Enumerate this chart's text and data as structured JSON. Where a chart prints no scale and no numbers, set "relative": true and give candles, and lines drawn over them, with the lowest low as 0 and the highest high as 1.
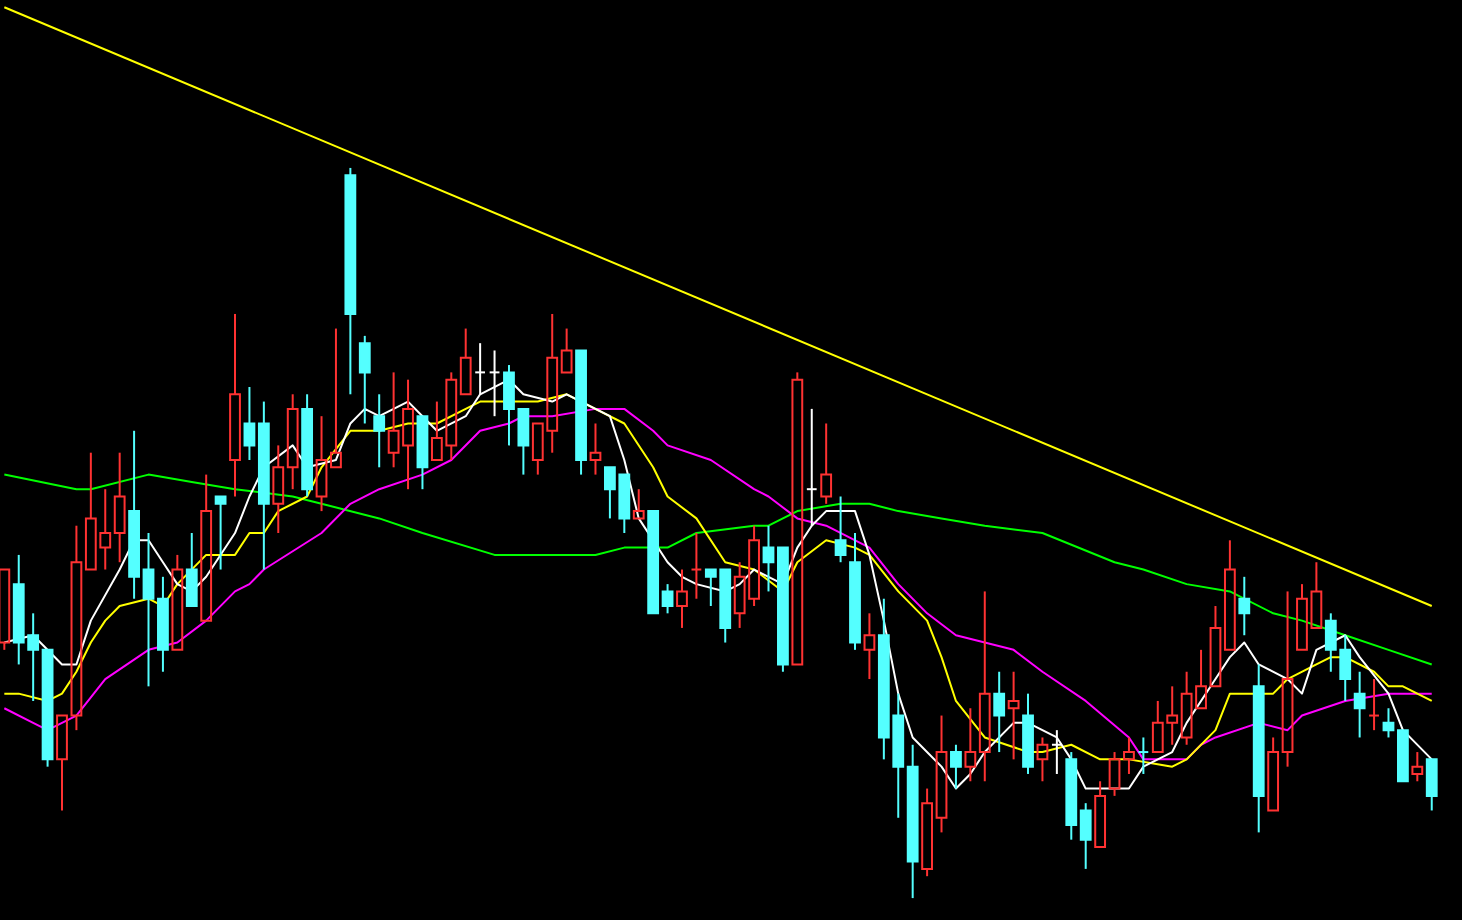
{
  "chart_data": {
    "type": "candlestick",
    "relative": true,
    "marker": "none",
    "categories": [
      null,
      null,
      null,
      null,
      null,
      null,
      null,
      null,
      null,
      null,
      null,
      null,
      null,
      null,
      null,
      null,
      null,
      null,
      null,
      null,
      null,
      null,
      null,
      null,
      null,
      null,
      null,
      null,
      null,
      null,
      null,
      null,
      null,
      null,
      null,
      null,
      null,
      null,
      null,
      null,
      null,
      null,
      null,
      null,
      null,
      null,
      null,
      null,
      null,
      null,
      null,
      null,
      null,
      null,
      null,
      null,
      null,
      null,
      null,
      null,
      null,
      null,
      null,
      null,
      null,
      null,
      null,
      null,
      null,
      null,
      null,
      null,
      null,
      null,
      null,
      null,
      null,
      null,
      null,
      null,
      null,
      null,
      null,
      null,
      null,
      null,
      null,
      null,
      null,
      null,
      null,
      null,
      null,
      null,
      null,
      null,
      null,
      null,
      null,
      null
    ],
    "ohlc": [
      [
        0.35,
        0.45,
        0.34,
        0.45
      ],
      [
        0.43,
        0.47,
        0.32,
        0.35
      ],
      [
        0.36,
        0.39,
        0.27,
        0.34
      ],
      [
        0.34,
        0.34,
        0.18,
        0.19
      ],
      [
        0.19,
        0.25,
        0.12,
        0.25
      ],
      [
        0.25,
        0.51,
        0.23,
        0.46
      ],
      [
        0.45,
        0.61,
        0.45,
        0.52
      ],
      [
        0.48,
        0.56,
        0.45,
        0.5
      ],
      [
        0.5,
        0.61,
        0.46,
        0.55
      ],
      [
        0.53,
        0.64,
        0.41,
        0.44
      ],
      [
        0.45,
        0.5,
        0.29,
        0.41
      ],
      [
        0.41,
        0.44,
        0.31,
        0.34
      ],
      [
        0.34,
        0.47,
        0.34,
        0.45
      ],
      [
        0.45,
        0.5,
        0.4,
        0.4
      ],
      [
        0.38,
        0.58,
        0.38,
        0.53
      ],
      [
        0.55,
        0.55,
        0.45,
        0.54
      ],
      [
        0.6,
        0.8,
        0.55,
        0.69
      ],
      [
        0.65,
        0.7,
        0.6,
        0.62
      ],
      [
        0.65,
        0.68,
        0.45,
        0.54
      ],
      [
        0.54,
        0.62,
        0.5,
        0.59
      ],
      [
        0.59,
        0.69,
        0.56,
        0.67
      ],
      [
        0.67,
        0.69,
        0.55,
        0.56
      ],
      [
        0.55,
        0.66,
        0.53,
        0.6
      ],
      [
        0.59,
        0.78,
        0.59,
        0.61
      ],
      [
        0.99,
        1.0,
        0.69,
        0.8
      ],
      [
        0.76,
        0.77,
        0.65,
        0.72
      ],
      [
        0.66,
        0.69,
        0.59,
        0.64
      ],
      [
        0.61,
        0.72,
        0.59,
        0.64
      ],
      [
        0.62,
        0.71,
        0.56,
        0.67
      ],
      [
        0.66,
        0.66,
        0.56,
        0.59
      ],
      [
        0.6,
        0.68,
        0.6,
        0.63
      ],
      [
        0.62,
        0.72,
        0.6,
        0.71
      ],
      [
        0.69,
        0.78,
        0.69,
        0.74
      ],
      [
        0.72,
        0.76,
        0.69,
        0.72
      ],
      [
        0.72,
        0.75,
        0.66,
        0.72
      ],
      [
        0.72,
        0.73,
        0.62,
        0.67
      ],
      [
        0.67,
        0.67,
        0.58,
        0.62
      ],
      [
        0.6,
        0.65,
        0.58,
        0.65
      ],
      [
        0.64,
        0.8,
        0.61,
        0.74
      ],
      [
        0.72,
        0.78,
        0.72,
        0.75
      ],
      [
        0.75,
        0.75,
        0.58,
        0.6
      ],
      [
        0.6,
        0.65,
        0.58,
        0.61
      ],
      [
        0.59,
        0.59,
        0.52,
        0.56
      ],
      [
        0.58,
        0.58,
        0.5,
        0.52
      ],
      [
        0.52,
        0.56,
        0.52,
        0.53
      ],
      [
        0.53,
        0.53,
        0.39,
        0.39
      ],
      [
        0.42,
        0.43,
        0.39,
        0.4
      ],
      [
        0.4,
        0.45,
        0.37,
        0.42
      ],
      [
        0.45,
        0.5,
        0.41,
        0.45
      ],
      [
        0.45,
        0.45,
        0.4,
        0.44
      ],
      [
        0.45,
        0.45,
        0.35,
        0.37
      ],
      [
        0.39,
        0.46,
        0.37,
        0.44
      ],
      [
        0.41,
        0.51,
        0.4,
        0.49
      ],
      [
        0.48,
        0.51,
        0.42,
        0.46
      ],
      [
        0.48,
        0.48,
        0.31,
        0.32
      ],
      [
        0.32,
        0.72,
        0.32,
        0.71
      ],
      [
        0.56,
        0.67,
        0.51,
        0.56
      ],
      [
        0.55,
        0.65,
        0.54,
        0.58
      ],
      [
        0.49,
        0.55,
        0.46,
        0.47
      ],
      [
        0.46,
        0.5,
        0.34,
        0.35
      ],
      [
        0.34,
        0.39,
        0.3,
        0.36
      ],
      [
        0.36,
        0.41,
        0.19,
        0.22
      ],
      [
        0.25,
        0.28,
        0.11,
        0.18
      ],
      [
        0.18,
        0.21,
        0.0,
        0.05
      ],
      [
        0.04,
        0.15,
        0.03,
        0.13
      ],
      [
        0.11,
        0.25,
        0.09,
        0.2
      ],
      [
        0.2,
        0.21,
        0.15,
        0.18
      ],
      [
        0.18,
        0.26,
        0.16,
        0.2
      ],
      [
        0.2,
        0.42,
        0.16,
        0.28
      ],
      [
        0.28,
        0.31,
        0.2,
        0.25
      ],
      [
        0.26,
        0.31,
        0.19,
        0.27
      ],
      [
        0.25,
        0.28,
        0.17,
        0.18
      ],
      [
        0.19,
        0.22,
        0.16,
        0.21
      ],
      [
        0.21,
        0.23,
        0.17,
        0.21
      ],
      [
        0.19,
        0.2,
        0.08,
        0.1
      ],
      [
        0.12,
        0.13,
        0.04,
        0.08
      ],
      [
        0.07,
        0.16,
        0.07,
        0.14
      ],
      [
        0.15,
        0.2,
        0.14,
        0.19
      ],
      [
        0.19,
        0.22,
        0.17,
        0.2
      ],
      [
        0.2,
        0.22,
        0.17,
        0.2
      ],
      [
        0.2,
        0.27,
        0.2,
        0.24
      ],
      [
        0.24,
        0.29,
        0.21,
        0.25
      ],
      [
        0.22,
        0.31,
        0.21,
        0.28
      ],
      [
        0.26,
        0.34,
        0.26,
        0.29
      ],
      [
        0.29,
        0.4,
        0.29,
        0.37
      ],
      [
        0.34,
        0.49,
        0.34,
        0.45
      ],
      [
        0.41,
        0.44,
        0.36,
        0.39
      ],
      [
        0.29,
        0.32,
        0.09,
        0.14
      ],
      [
        0.12,
        0.22,
        0.12,
        0.2
      ],
      [
        0.2,
        0.42,
        0.18,
        0.3
      ],
      [
        0.34,
        0.43,
        0.34,
        0.41
      ],
      [
        0.37,
        0.46,
        0.37,
        0.42
      ],
      [
        0.38,
        0.39,
        0.31,
        0.34
      ],
      [
        0.34,
        0.36,
        0.27,
        0.3
      ],
      [
        0.28,
        0.31,
        0.22,
        0.26
      ],
      [
        0.25,
        0.3,
        0.23,
        0.25
      ],
      [
        0.24,
        0.26,
        0.22,
        0.23
      ],
      [
        0.23,
        0.23,
        0.16,
        0.16
      ],
      [
        0.17,
        0.2,
        0.16,
        0.18
      ],
      [
        0.19,
        0.19,
        0.12,
        0.14
      ]
    ],
    "colors": [
      "#ff3232",
      "#54ffff",
      "#54ffff",
      "#54ffff",
      "#ff3232",
      "#ff3232",
      "#ff3232",
      "#ff3232",
      "#ff3232",
      "#54ffff",
      "#54ffff",
      "#54ffff",
      "#ff3232",
      "#54ffff",
      "#ff3232",
      "#54ffff",
      "#ff3232",
      "#54ffff",
      "#54ffff",
      "#ff3232",
      "#ff3232",
      "#54ffff",
      "#ff3232",
      "#ff3232",
      "#54ffff",
      "#54ffff",
      "#54ffff",
      "#ff3232",
      "#ff3232",
      "#54ffff",
      "#ff3232",
      "#ff3232",
      "#ff3232",
      "#ffffff",
      "#ffffff",
      "#54ffff",
      "#54ffff",
      "#ff3232",
      "#ff3232",
      "#ff3232",
      "#54ffff",
      "#ff3232",
      "#54ffff",
      "#54ffff",
      "#ff3232",
      "#54ffff",
      "#54ffff",
      "#ff3232",
      "#ff3232",
      "#54ffff",
      "#54ffff",
      "#ff3232",
      "#ff3232",
      "#54ffff",
      "#54ffff",
      "#ff3232",
      "#ffffff",
      "#ff3232",
      "#54ffff",
      "#54ffff",
      "#ff3232",
      "#54ffff",
      "#54ffff",
      "#54ffff",
      "#ff3232",
      "#ff3232",
      "#54ffff",
      "#ff3232",
      "#ff3232",
      "#54ffff",
      "#ff3232",
      "#54ffff",
      "#ff3232",
      "#ffffff",
      "#54ffff",
      "#54ffff",
      "#ff3232",
      "#ff3232",
      "#ff3232",
      "#54ffff",
      "#ff3232",
      "#ff3232",
      "#ff3232",
      "#ff3232",
      "#ff3232",
      "#ff3232",
      "#54ffff",
      "#54ffff",
      "#ff3232",
      "#ff3232",
      "#ff3232",
      "#ff3232",
      "#54ffff",
      "#54ffff",
      "#54ffff",
      "#ff3232",
      "#54ffff",
      "#54ffff",
      "#ff3232",
      "#54ffff"
    ],
    "series": [
      {
        "type": "line",
        "color": "#00ff00",
        "values": [
          0.58,
          null,
          null,
          null,
          null,
          0.56,
          0.56,
          null,
          null,
          null,
          0.58,
          null,
          null,
          0.57,
          null,
          null,
          0.56,
          null,
          null,
          null,
          0.55,
          null,
          0.54,
          null,
          null,
          null,
          0.52,
          null,
          null,
          0.5,
          null,
          null,
          null,
          null,
          0.47,
          null,
          0.47,
          null,
          0.47,
          null,
          null,
          0.47,
          null,
          0.48,
          null,
          null,
          0.48,
          null,
          0.5,
          null,
          null,
          null,
          0.51,
          0.51,
          null,
          0.53,
          null,
          null,
          0.54,
          null,
          0.54,
          null,
          0.53,
          null,
          null,
          0.52,
          null,
          null,
          0.51,
          null,
          null,
          null,
          0.5,
          null,
          null,
          null,
          null,
          0.46,
          null,
          0.45,
          null,
          null,
          0.43,
          null,
          null,
          0.42,
          null,
          null,
          0.39,
          null,
          0.38,
          null,
          null,
          0.36,
          null,
          null,
          0.34,
          null,
          null,
          0.32
        ]
      },
      {
        "type": "line",
        "color": "#ff00ff",
        "values": [
          0.26,
          null,
          0.24,
          0.23,
          null,
          0.25,
          null,
          0.3,
          null,
          null,
          0.34,
          null,
          0.35,
          null,
          0.38,
          null,
          0.42,
          0.43,
          0.45,
          null,
          null,
          null,
          0.5,
          null,
          0.54,
          null,
          0.56,
          null,
          null,
          0.58,
          null,
          0.6,
          null,
          0.64,
          null,
          0.65,
          0.66,
          null,
          0.66,
          null,
          null,
          0.67,
          null,
          0.67,
          null,
          0.64,
          0.62,
          null,
          null,
          0.6,
          null,
          null,
          0.56,
          0.55,
          null,
          0.52,
          null,
          0.51,
          null,
          null,
          0.48,
          null,
          0.43,
          null,
          0.39,
          null,
          0.36,
          null,
          0.35,
          null,
          0.34,
          null,
          0.31,
          null,
          null,
          0.27,
          null,
          null,
          0.22,
          0.19,
          null,
          null,
          0.19,
          0.21,
          0.22,
          null,
          null,
          0.24,
          null,
          0.23,
          0.25,
          null,
          null,
          0.27,
          null,
          null,
          0.28,
          null,
          0.28,
          0.28
        ]
      },
      {
        "type": "line",
        "color": "#ffff00",
        "values": [
          0.28,
          0.28,
          null,
          0.27,
          0.28,
          0.31,
          0.35,
          0.38,
          0.4,
          null,
          0.41,
          0.4,
          0.43,
          null,
          0.47,
          null,
          0.47,
          0.5,
          0.5,
          0.53,
          null,
          0.55,
          0.59,
          null,
          0.64,
          0.64,
          0.64,
          null,
          0.65,
          0.65,
          0.65,
          null,
          0.67,
          0.68,
          null,
          0.68,
          null,
          0.68,
          null,
          0.69,
          null,
          0.67,
          null,
          0.65,
          null,
          0.59,
          0.55,
          null,
          0.52,
          null,
          0.46,
          null,
          0.45,
          null,
          0.42,
          0.46,
          null,
          0.49,
          null,
          0.48,
          0.47,
          null,
          0.42,
          null,
          0.38,
          0.33,
          0.27,
          null,
          0.22,
          null,
          null,
          0.2,
          0.2,
          null,
          0.21,
          null,
          0.19,
          null,
          0.19,
          null,
          null,
          0.18,
          0.19,
          null,
          0.23,
          0.28,
          null,
          0.28,
          0.28,
          0.3,
          null,
          0.32,
          0.33,
          0.33,
          null,
          0.31,
          0.29,
          0.29,
          null,
          0.27
        ]
      },
      {
        "type": "line",
        "color": "#ffffff",
        "values": [
          0.35,
          null,
          0.36,
          null,
          0.32,
          0.32,
          0.38,
          null,
          0.45,
          0.49,
          0.49,
          0.46,
          0.43,
          0.42,
          0.44,
          null,
          0.5,
          0.55,
          0.59,
          null,
          0.62,
          0.59,
          null,
          0.6,
          0.65,
          0.67,
          0.66,
          null,
          0.68,
          0.66,
          0.64,
          null,
          0.66,
          0.69,
          null,
          0.71,
          0.69,
          null,
          0.68,
          0.69,
          null,
          0.67,
          0.66,
          0.6,
          0.52,
          null,
          0.46,
          0.44,
          0.43,
          null,
          0.42,
          0.43,
          0.45,
          null,
          0.43,
          0.48,
          0.51,
          0.53,
          null,
          0.53,
          0.47,
          0.38,
          0.28,
          0.22,
          null,
          0.18,
          0.15,
          0.17,
          0.2,
          null,
          0.24,
          0.24,
          null,
          0.22,
          0.19,
          0.15,
          null,
          0.15,
          0.15,
          0.18,
          null,
          0.2,
          0.24,
          null,
          0.3,
          0.33,
          0.35,
          0.32,
          null,
          0.3,
          0.28,
          0.34,
          null,
          0.36,
          0.33,
          null,
          0.28,
          0.23,
          null,
          0.19
        ]
      },
      {
        "type": "line",
        "color": "#ffff00",
        "values": [
          1.22,
          null,
          null,
          null,
          null,
          null,
          null,
          null,
          null,
          null,
          null,
          null,
          null,
          null,
          null,
          null,
          null,
          null,
          null,
          null,
          null,
          null,
          null,
          null,
          null,
          null,
          null,
          null,
          null,
          null,
          null,
          null,
          null,
          null,
          null,
          null,
          null,
          null,
          null,
          null,
          null,
          null,
          null,
          null,
          null,
          null,
          null,
          null,
          null,
          null,
          null,
          null,
          null,
          null,
          null,
          null,
          null,
          null,
          null,
          null,
          null,
          null,
          null,
          null,
          null,
          null,
          null,
          null,
          null,
          null,
          null,
          null,
          null,
          null,
          null,
          null,
          null,
          null,
          null,
          null,
          null,
          null,
          null,
          null,
          null,
          null,
          null,
          null,
          null,
          null,
          null,
          null,
          null,
          null,
          null,
          null,
          null,
          null,
          null,
          0.4
        ]
      }
    ]
  }
}
